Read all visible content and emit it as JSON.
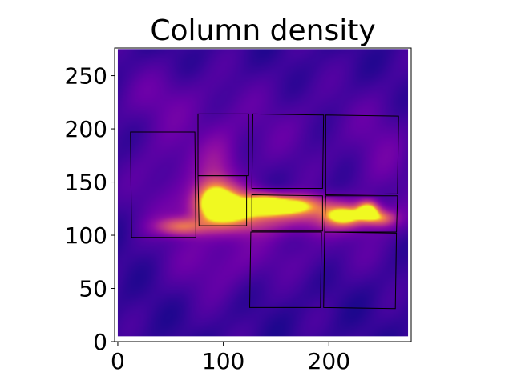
{
  "chart_data": {
    "type": "heatmap",
    "title": "Column density",
    "xlabel": "",
    "ylabel": "",
    "xlim": [
      -3,
      278
    ],
    "ylim": [
      0,
      276
    ],
    "x_ticks": [
      0,
      100,
      200
    ],
    "y_ticks": [
      0,
      50,
      100,
      150,
      200,
      250
    ],
    "image_extent": {
      "x": [
        0,
        275
      ],
      "y": [
        5,
        275
      ]
    },
    "colormap": "plasma",
    "grid": false,
    "regions": [
      {
        "corners": [
          [
            12,
            197
          ],
          [
            73,
            197
          ],
          [
            74,
            98
          ],
          [
            13,
            98
          ]
        ]
      },
      {
        "corners": [
          [
            76,
            214
          ],
          [
            124,
            214
          ],
          [
            124,
            156
          ],
          [
            76,
            156
          ]
        ]
      },
      {
        "corners": [
          [
            76,
            156
          ],
          [
            122,
            156
          ],
          [
            122,
            109
          ],
          [
            77,
            109
          ]
        ]
      },
      {
        "corners": [
          [
            128,
            214
          ],
          [
            195,
            213
          ],
          [
            194,
            144
          ],
          [
            127,
            144
          ]
        ]
      },
      {
        "corners": [
          [
            127,
            138
          ],
          [
            194,
            137
          ],
          [
            194,
            104
          ],
          [
            127,
            104
          ]
        ]
      },
      {
        "corners": [
          [
            126,
            103
          ],
          [
            193,
            103
          ],
          [
            192,
            32
          ],
          [
            125,
            32
          ]
        ]
      },
      {
        "corners": [
          [
            197,
            213
          ],
          [
            266,
            212
          ],
          [
            265,
            139
          ],
          [
            197,
            138
          ]
        ]
      },
      {
        "corners": [
          [
            197,
            137
          ],
          [
            265,
            137
          ],
          [
            264,
            103
          ],
          [
            196,
            103
          ]
        ]
      },
      {
        "corners": [
          [
            196,
            103
          ],
          [
            264,
            102
          ],
          [
            263,
            31
          ],
          [
            195,
            32
          ]
        ]
      }
    ],
    "density_features": [
      {
        "x": 105,
        "y": 125,
        "sx": 22,
        "sy": 13,
        "amp": 0.85
      },
      {
        "x": 90,
        "y": 135,
        "sx": 12,
        "sy": 12,
        "amp": 0.55
      },
      {
        "x": 160,
        "y": 128,
        "sx": 26,
        "sy": 7,
        "amp": 0.9
      },
      {
        "x": 140,
        "y": 130,
        "sx": 10,
        "sy": 6,
        "amp": 0.5
      },
      {
        "x": 215,
        "y": 118,
        "sx": 12,
        "sy": 6,
        "amp": 0.8
      },
      {
        "x": 237,
        "y": 123,
        "sx": 7,
        "sy": 6,
        "amp": 1.0
      },
      {
        "x": 250,
        "y": 116,
        "sx": 9,
        "sy": 5,
        "amp": 0.5
      },
      {
        "x": 60,
        "y": 108,
        "sx": 16,
        "sy": 6,
        "amp": 0.55
      },
      {
        "x": 180,
        "y": 116,
        "sx": 60,
        "sy": 11,
        "amp": 0.35
      },
      {
        "x": 95,
        "y": 160,
        "sx": 14,
        "sy": 26,
        "amp": 0.25
      },
      {
        "x": 45,
        "y": 150,
        "sx": 25,
        "sy": 40,
        "amp": 0.12
      },
      {
        "x": 140,
        "y": 200,
        "sx": 60,
        "sy": 35,
        "amp": 0.09
      },
      {
        "x": 250,
        "y": 175,
        "sx": 22,
        "sy": 40,
        "amp": 0.12
      },
      {
        "x": 40,
        "y": 230,
        "sx": 35,
        "sy": 20,
        "amp": 0.1
      },
      {
        "x": 95,
        "y": 75,
        "sx": 30,
        "sy": 25,
        "amp": 0.14
      },
      {
        "x": 180,
        "y": 85,
        "sx": 60,
        "sy": 18,
        "amp": 0.08
      }
    ]
  }
}
